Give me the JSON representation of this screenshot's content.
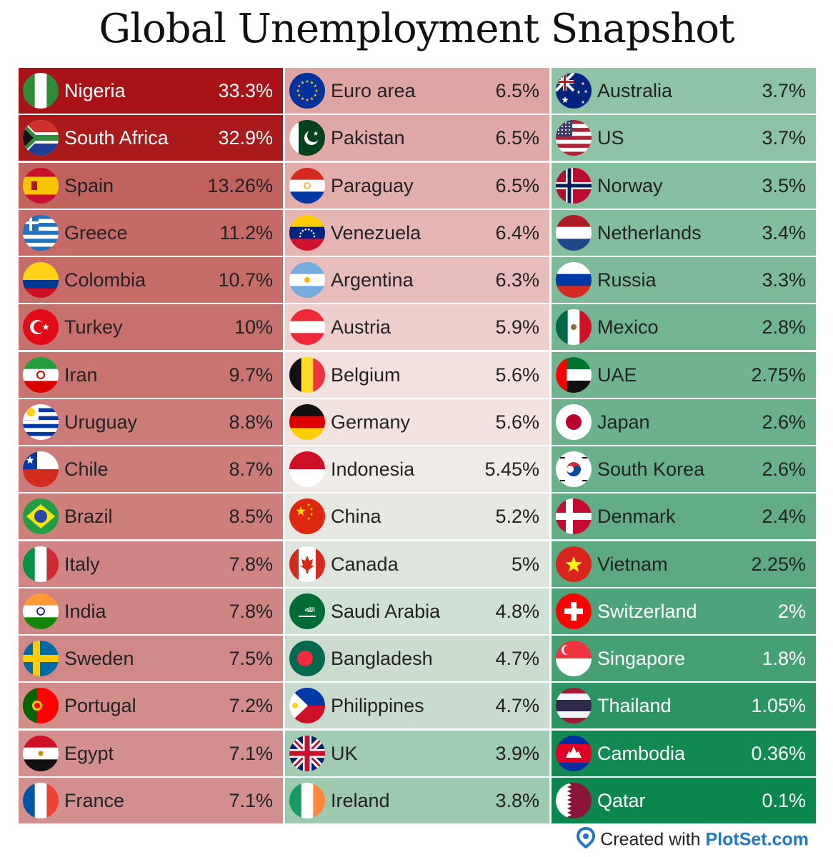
{
  "chart_data": {
    "type": "table",
    "title": "Global Unemployment Snapshot",
    "columns": [
      [
        {
          "country": "Nigeria",
          "value": "33.3%",
          "flag": "nigeria-flag-icon",
          "bg": "#a91216",
          "fg": "#ffffff"
        },
        {
          "country": "South Africa",
          "value": "32.9%",
          "flag": "south-africa-flag-icon",
          "bg": "#aa1a1a",
          "fg": "#ffffff"
        },
        {
          "country": "Spain",
          "value": "13.26%",
          "flag": "spain-flag-icon",
          "bg": "#c1625f",
          "fg": "#222222"
        },
        {
          "country": "Greece",
          "value": "11.2%",
          "flag": "greece-flag-icon",
          "bg": "#c56a67",
          "fg": "#222222"
        },
        {
          "country": "Colombia",
          "value": "10.7%",
          "flag": "colombia-flag-icon",
          "bg": "#c66c69",
          "fg": "#222222"
        },
        {
          "country": "Turkey",
          "value": "10%",
          "flag": "turkey-flag-icon",
          "bg": "#c8706d",
          "fg": "#222222"
        },
        {
          "country": "Iran",
          "value": "9.7%",
          "flag": "iran-flag-icon",
          "bg": "#c97471",
          "fg": "#222222"
        },
        {
          "country": "Uruguay",
          "value": "8.8%",
          "flag": "uruguay-flag-icon",
          "bg": "#cb7b78",
          "fg": "#222222"
        },
        {
          "country": "Chile",
          "value": "8.7%",
          "flag": "chile-flag-icon",
          "bg": "#cc7c79",
          "fg": "#222222"
        },
        {
          "country": "Brazil",
          "value": "8.5%",
          "flag": "brazil-flag-icon",
          "bg": "#cd7f7c",
          "fg": "#222222"
        },
        {
          "country": "Italy",
          "value": "7.8%",
          "flag": "italy-flag-icon",
          "bg": "#cf8583",
          "fg": "#222222"
        },
        {
          "country": "India",
          "value": "7.8%",
          "flag": "india-flag-icon",
          "bg": "#cf8583",
          "fg": "#222222"
        },
        {
          "country": "Sweden",
          "value": "7.5%",
          "flag": "sweden-flag-icon",
          "bg": "#d08987",
          "fg": "#222222"
        },
        {
          "country": "Portugal",
          "value": "7.2%",
          "flag": "portugal-flag-icon",
          "bg": "#d28d8b",
          "fg": "#222222"
        },
        {
          "country": "Egypt",
          "value": "7.1%",
          "flag": "egypt-flag-icon",
          "bg": "#d38f8d",
          "fg": "#222222"
        },
        {
          "country": "France",
          "value": "7.1%",
          "flag": "france-flag-icon",
          "bg": "#d38f8d",
          "fg": "#222222"
        }
      ],
      [
        {
          "country": "Euro area",
          "value": "6.5%",
          "flag": "eu-flag-icon",
          "bg": "#dfa5a3",
          "fg": "#222222"
        },
        {
          "country": "Pakistan",
          "value": "6.5%",
          "flag": "pakistan-flag-icon",
          "bg": "#e0a8a6",
          "fg": "#222222"
        },
        {
          "country": "Paraguay",
          "value": "6.5%",
          "flag": "paraguay-flag-icon",
          "bg": "#e2aeac",
          "fg": "#222222"
        },
        {
          "country": "Venezuela",
          "value": "6.4%",
          "flag": "venezuela-flag-icon",
          "bg": "#e4b5b3",
          "fg": "#222222"
        },
        {
          "country": "Argentina",
          "value": "6.3%",
          "flag": "argentina-flag-icon",
          "bg": "#e7bdbb",
          "fg": "#222222"
        },
        {
          "country": "Austria",
          "value": "5.9%",
          "flag": "austria-flag-icon",
          "bg": "#edcfcc",
          "fg": "#222222"
        },
        {
          "country": "Belgium",
          "value": "5.6%",
          "flag": "belgium-flag-icon",
          "bg": "#f2e1de",
          "fg": "#222222"
        },
        {
          "country": "Germany",
          "value": "5.6%",
          "flag": "germany-flag-icon",
          "bg": "#f3e3e0",
          "fg": "#222222"
        },
        {
          "country": "Indonesia",
          "value": "5.45%",
          "flag": "indonesia-flag-icon",
          "bg": "#f0ebe6",
          "fg": "#222222"
        },
        {
          "country": "China",
          "value": "5.2%",
          "flag": "china-flag-icon",
          "bg": "#e6e8e1",
          "fg": "#222222"
        },
        {
          "country": "Canada",
          "value": "5%",
          "flag": "canada-flag-icon",
          "bg": "#dde5dc",
          "fg": "#222222"
        },
        {
          "country": "Saudi Arabia",
          "value": "4.8%",
          "flag": "saudi-arabia-flag-icon",
          "bg": "#d1e0d4",
          "fg": "#222222"
        },
        {
          "country": "Bangladesh",
          "value": "4.7%",
          "flag": "bangladesh-flag-icon",
          "bg": "#cbdccf",
          "fg": "#222222"
        },
        {
          "country": "Philippines",
          "value": "4.7%",
          "flag": "philippines-flag-icon",
          "bg": "#c9dbce",
          "fg": "#222222"
        },
        {
          "country": "UK",
          "value": "3.9%",
          "flag": "uk-flag-icon",
          "bg": "#a1cbb2",
          "fg": "#222222"
        },
        {
          "country": "Ireland",
          "value": "3.8%",
          "flag": "ireland-flag-icon",
          "bg": "#9dc9af",
          "fg": "#222222"
        }
      ],
      [
        {
          "country": "Australia",
          "value": "3.7%",
          "flag": "australia-flag-icon",
          "bg": "#8fc3a7",
          "fg": "#222222"
        },
        {
          "country": "US",
          "value": "3.7%",
          "flag": "us-flag-icon",
          "bg": "#8dc2a5",
          "fg": "#222222"
        },
        {
          "country": "Norway",
          "value": "3.5%",
          "flag": "norway-flag-icon",
          "bg": "#86bfa0",
          "fg": "#222222"
        },
        {
          "country": "Netherlands",
          "value": "3.4%",
          "flag": "netherlands-flag-icon",
          "bg": "#82bd9d",
          "fg": "#222222"
        },
        {
          "country": "Russia",
          "value": "3.3%",
          "flag": "russia-flag-icon",
          "bg": "#7eba9a",
          "fg": "#222222"
        },
        {
          "country": "Mexico",
          "value": "2.8%",
          "flag": "mexico-flag-icon",
          "bg": "#71b591",
          "fg": "#222222"
        },
        {
          "country": "UAE",
          "value": "2.75%",
          "flag": "uae-flag-icon",
          "bg": "#6fb48f",
          "fg": "#222222"
        },
        {
          "country": "Japan",
          "value": "2.6%",
          "flag": "japan-flag-icon",
          "bg": "#6ab18c",
          "fg": "#222222"
        },
        {
          "country": "South Korea",
          "value": "2.6%",
          "flag": "south-korea-flag-icon",
          "bg": "#69b18b",
          "fg": "#222222"
        },
        {
          "country": "Denmark",
          "value": "2.4%",
          "flag": "denmark-flag-icon",
          "bg": "#62ad86",
          "fg": "#222222"
        },
        {
          "country": "Vietnam",
          "value": "2.25%",
          "flag": "vietnam-flag-icon",
          "bg": "#5ca982",
          "fg": "#222222"
        },
        {
          "country": "Switzerland",
          "value": "2%",
          "flag": "switzerland-flag-icon",
          "bg": "#4ea47a",
          "fg": "#ffffff"
        },
        {
          "country": "Singapore",
          "value": "1.8%",
          "flag": "singapore-flag-icon",
          "bg": "#45a074",
          "fg": "#ffffff"
        },
        {
          "country": "Thailand",
          "value": "1.05%",
          "flag": "thailand-flag-icon",
          "bg": "#2b9462",
          "fg": "#ffffff"
        },
        {
          "country": "Cambodia",
          "value": "0.36%",
          "flag": "cambodia-flag-icon",
          "bg": "#138a52",
          "fg": "#ffffff"
        },
        {
          "country": "Qatar",
          "value": "0.1%",
          "flag": "qatar-flag-icon",
          "bg": "#0a874d",
          "fg": "#ffffff"
        }
      ]
    ]
  },
  "footer": {
    "prefix": "Created with ",
    "brand": "PlotSet.com",
    "logo": "plotset-logo-icon"
  }
}
